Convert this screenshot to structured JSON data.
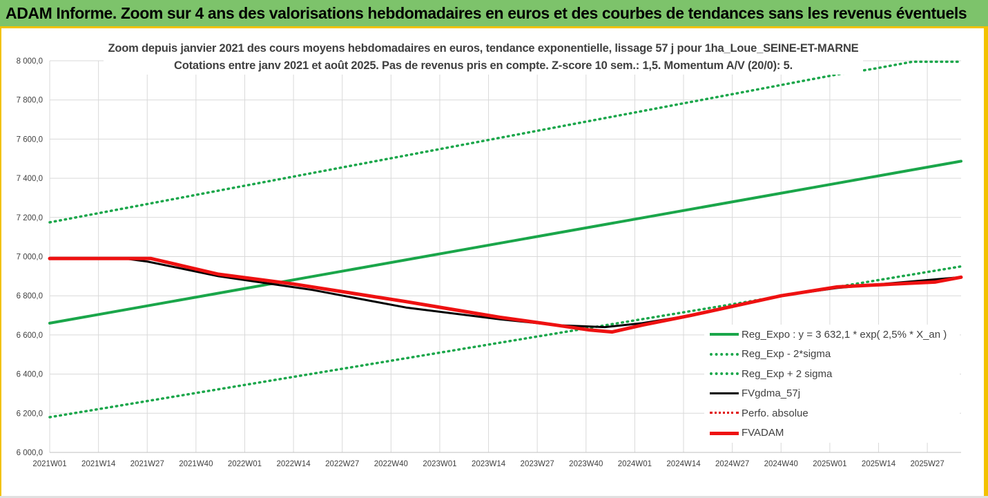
{
  "banner": {
    "title": "ADAM Informe. Zoom sur 4 ans des valorisations hebdomadaires en euros et des courbes de tendances sans les revenus éventuels"
  },
  "colors": {
    "banner_bg": "#7dc36b",
    "frame": "#f2c200",
    "reg_expo": "#1aa64a",
    "reg_band": "#1aa64a",
    "fvgdma": "#000000",
    "perfo": "#e00000",
    "fvadam": "#ee1111",
    "grid": "#d9d9d9"
  },
  "chart_data": {
    "type": "line",
    "title_lines": [
      "Zoom depuis janvier 2021 des cours moyens hebdomadaires en euros, tendance exponentielle, lissage 57 j pour 1ha_Loue_SEINE-ET-MARNE",
      "Cotations entre janv 2021 et août 2025.  Pas de revenus pris en compte. Z-score 10 sem.: 1,5. Momentum A/V (20/0): 5."
    ],
    "ylim": [
      6000,
      8000
    ],
    "ytick_labels": [
      "8 000,0",
      "7 800,0",
      "7 600,0",
      "7 400,0",
      "7 200,0",
      "7 000,0",
      "6 800,0",
      "6 600,0",
      "6 400,0",
      "6 200,0",
      "6 000,0"
    ],
    "xtick_labels": [
      "2021W01",
      "2021W14",
      "2021W27",
      "2021W40",
      "2022W01",
      "2022W14",
      "2022W27",
      "2022W40",
      "2023W01",
      "2023W14",
      "2023W27",
      "2023W40",
      "2024W01",
      "2024W14",
      "2024W27",
      "2024W40",
      "2025W01",
      "2025W14",
      "2025W27"
    ],
    "x_start_week_label": "2021W01",
    "x_end_week_index": 243,
    "grid": "vertical and horizontal",
    "legend_placement": "bottom-right",
    "series": [
      {
        "name": "Reg_Expo : y = 3 632,1 * exp( 2,5% *  X_an )",
        "key": "reg_expo",
        "style": "solid",
        "points": [
          [
            0,
            6660
          ],
          [
            243,
            7487
          ]
        ]
      },
      {
        "name": "Reg_Exp - 2*sigma",
        "key": "reg_minus",
        "style": "dotted",
        "points": [
          [
            0,
            6180
          ],
          [
            243,
            6950
          ]
        ]
      },
      {
        "name": "Reg_Exp + 2 sigma",
        "key": "reg_plus",
        "style": "dotted",
        "points": [
          [
            0,
            7175
          ],
          [
            210,
            7930
          ],
          [
            220,
            7960
          ],
          [
            230,
            7995
          ],
          [
            243,
            7995
          ]
        ]
      },
      {
        "name": "FVgdma_57j",
        "key": "fvgdma",
        "style": "solid",
        "points": [
          [
            0,
            6990
          ],
          [
            20,
            6990
          ],
          [
            26,
            6975
          ],
          [
            45,
            6900
          ],
          [
            70,
            6830
          ],
          [
            95,
            6740
          ],
          [
            120,
            6680
          ],
          [
            135,
            6650
          ],
          [
            148,
            6640
          ],
          [
            158,
            6660
          ],
          [
            171,
            6700
          ],
          [
            195,
            6800
          ],
          [
            210,
            6840
          ],
          [
            225,
            6865
          ],
          [
            243,
            6895
          ]
        ]
      },
      {
        "name": "Perfo. absolue",
        "key": "perfo",
        "style": "dotted",
        "points": []
      },
      {
        "name": "FVADAM",
        "key": "fvadam",
        "style": "solid",
        "points": [
          [
            0,
            6990
          ],
          [
            27,
            6990
          ],
          [
            45,
            6910
          ],
          [
            65,
            6860
          ],
          [
            95,
            6770
          ],
          [
            120,
            6690
          ],
          [
            135,
            6650
          ],
          [
            144,
            6625
          ],
          [
            150,
            6615
          ],
          [
            158,
            6650
          ],
          [
            171,
            6700
          ],
          [
            195,
            6800
          ],
          [
            210,
            6845
          ],
          [
            225,
            6860
          ],
          [
            236,
            6870
          ],
          [
            243,
            6895
          ]
        ]
      }
    ]
  }
}
